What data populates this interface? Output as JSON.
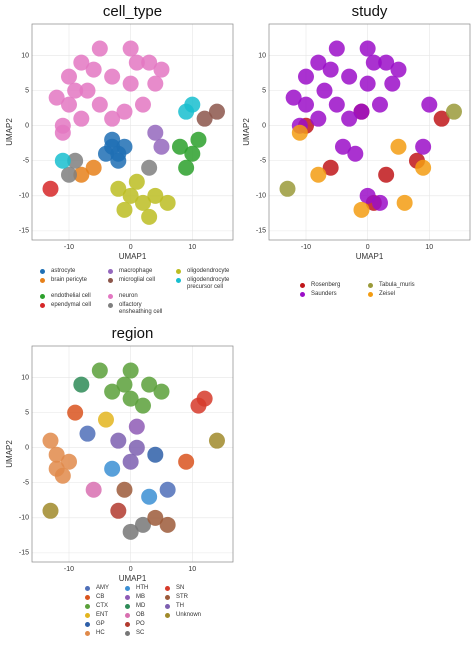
{
  "chart_data": [
    {
      "type": "scatter",
      "title": "cell_type",
      "x_label": "UMAP1",
      "y_label": "UMAP2",
      "xlim": [
        -16,
        16.6
      ],
      "ylim": [
        -16.3,
        14.5
      ],
      "xticks": [
        -10,
        0,
        10
      ],
      "yticks": [
        -15,
        -10,
        -5,
        0,
        5,
        10
      ],
      "grid": true,
      "series": [
        {
          "name": "astrocyte",
          "color": "#1f6fb4",
          "x": [
            -3,
            -2,
            -4,
            -1,
            -3,
            -2
          ],
          "y": [
            -3,
            -5,
            -4,
            -3,
            -2,
            -4
          ]
        },
        {
          "name": "brain pericyte",
          "color": "#e6801a",
          "x": [
            -6,
            -8
          ],
          "y": [
            -6,
            -7
          ]
        },
        {
          "name": "endothelial cell",
          "color": "#2ca02c",
          "x": [
            8,
            10,
            9,
            11
          ],
          "y": [
            -3,
            -4,
            -6,
            -2
          ]
        },
        {
          "name": "ependymal cell",
          "color": "#d62728",
          "x": [
            -13
          ],
          "y": [
            -9
          ]
        },
        {
          "name": "macrophage",
          "color": "#9467bd",
          "x": [
            5,
            4
          ],
          "y": [
            -3,
            -1
          ]
        },
        {
          "name": "microglial cell",
          "color": "#8c564b",
          "x": [
            12,
            14
          ],
          "y": [
            1,
            2
          ]
        },
        {
          "name": "neuron",
          "color": "#e377c2",
          "x": [
            -10,
            -8,
            -5,
            0,
            3,
            5,
            -10,
            -7,
            -3,
            0,
            2,
            -11,
            -8,
            -5,
            -3,
            -11,
            1,
            -6,
            4,
            -1,
            -12,
            -9
          ],
          "y": [
            7,
            9,
            11,
            11,
            9,
            8,
            3,
            5,
            7,
            6,
            3,
            0,
            1,
            3,
            1,
            -1,
            9,
            8,
            6,
            2,
            4,
            5
          ]
        },
        {
          "name": "olfactory ensheathing cell",
          "color": "#7f7f7f",
          "x": [
            -9,
            -10,
            3
          ],
          "y": [
            -5,
            -7,
            -6
          ]
        },
        {
          "name": "oligodendrocyte",
          "color": "#bcbd22",
          "x": [
            0,
            2,
            4,
            -2,
            6,
            1,
            -1,
            3
          ],
          "y": [
            -10,
            -11,
            -10,
            -9,
            -11,
            -8,
            -12,
            -13
          ]
        },
        {
          "name": "oligodendrocyte precursor cell",
          "color": "#17becf",
          "x": [
            9,
            10,
            -11
          ],
          "y": [
            2,
            3,
            -5
          ]
        }
      ]
    },
    {
      "type": "scatter",
      "title": "study",
      "x_label": "UMAP1",
      "y_label": "UMAP2",
      "xlim": [
        -16,
        16.6
      ],
      "ylim": [
        -16.3,
        14.5
      ],
      "xticks": [
        -10,
        0,
        10
      ],
      "yticks": [
        -15,
        -10,
        -5,
        0,
        5,
        10
      ],
      "grid": true,
      "series": [
        {
          "name": "Rosenberg",
          "color": "#c0161a",
          "x": [
            -6,
            3,
            -1,
            8,
            12,
            -10,
            1
          ],
          "y": [
            -6,
            -7,
            2,
            -5,
            1,
            0,
            -11
          ]
        },
        {
          "name": "Saunders",
          "color": "#9b0ec8",
          "x": [
            -10,
            -8,
            -5,
            0,
            3,
            5,
            -10,
            -7,
            -3,
            0,
            2,
            -11,
            -8,
            -5,
            -3,
            1,
            -6,
            4,
            -1,
            -2,
            -4,
            0,
            2,
            -12,
            9,
            10
          ],
          "y": [
            7,
            9,
            11,
            11,
            9,
            8,
            3,
            5,
            7,
            6,
            3,
            0,
            1,
            3,
            1,
            9,
            8,
            6,
            2,
            -4,
            -3,
            -10,
            -11,
            4,
            -3,
            3
          ]
        },
        {
          "name": "Tabula_muris",
          "color": "#9a9a3a",
          "x": [
            -13,
            14
          ],
          "y": [
            -9,
            2
          ]
        },
        {
          "name": "Zeisel",
          "color": "#f39c12",
          "x": [
            -11,
            5,
            -8,
            6,
            -1,
            9
          ],
          "y": [
            -1,
            -3,
            -7,
            -11,
            -12,
            -6
          ]
        }
      ]
    },
    {
      "type": "scatter",
      "title": "region",
      "x_label": "UMAP1",
      "y_label": "UMAP2",
      "xlim": [
        -16,
        16.6
      ],
      "ylim": [
        -16.3,
        14.5
      ],
      "xticks": [
        -10,
        0,
        10
      ],
      "yticks": [
        -15,
        -10,
        -5,
        0,
        5,
        10
      ],
      "grid": true,
      "series": [
        {
          "name": "AMY",
          "color": "#4f6fb8",
          "x": [
            -7,
            6
          ],
          "y": [
            2,
            -6
          ]
        },
        {
          "name": "CB",
          "color": "#d9541e",
          "x": [
            -9,
            9
          ],
          "y": [
            5,
            -2
          ]
        },
        {
          "name": "CTX",
          "color": "#5aa03a",
          "x": [
            -5,
            0,
            3,
            -3,
            0,
            2,
            -1,
            5
          ],
          "y": [
            11,
            11,
            9,
            8,
            7,
            6,
            9,
            8
          ]
        },
        {
          "name": "ENT",
          "color": "#e3b51e",
          "x": [
            -4
          ],
          "y": [
            4
          ]
        },
        {
          "name": "GP",
          "color": "#2e5fa8",
          "x": [
            4
          ],
          "y": [
            -1
          ]
        },
        {
          "name": "HC",
          "color": "#e08a4a",
          "x": [
            -12,
            -11,
            -13,
            -10,
            -12
          ],
          "y": [
            -1,
            -4,
            1,
            -2,
            -3
          ]
        },
        {
          "name": "HTH",
          "color": "#3b8fd4",
          "x": [
            -3,
            3
          ],
          "y": [
            -3,
            -7
          ]
        },
        {
          "name": "MB",
          "color": "#8e5ab5",
          "x": [
            1
          ],
          "y": [
            3
          ]
        },
        {
          "name": "MD",
          "color": "#2e8b57",
          "x": [
            -8
          ],
          "y": [
            9
          ]
        },
        {
          "name": "OB",
          "color": "#d86fb0",
          "x": [
            -6
          ],
          "y": [
            -6
          ]
        },
        {
          "name": "PO",
          "color": "#b23a2e",
          "x": [
            -2
          ],
          "y": [
            -9
          ]
        },
        {
          "name": "SC",
          "color": "#777777",
          "x": [
            2,
            0
          ],
          "y": [
            -11,
            -12
          ]
        },
        {
          "name": "SN",
          "color": "#d63a2a",
          "x": [
            11,
            12
          ],
          "y": [
            6,
            7
          ]
        },
        {
          "name": "STR",
          "color": "#9c5a3a",
          "x": [
            4,
            6,
            -1
          ],
          "y": [
            -10,
            -11,
            -6
          ]
        },
        {
          "name": "TH",
          "color": "#7d5fb0",
          "x": [
            0,
            1,
            -2
          ],
          "y": [
            -2,
            0,
            1
          ]
        },
        {
          "name": "Unknown",
          "color": "#a08a2a",
          "x": [
            -13,
            14
          ],
          "y": [
            -9,
            1
          ]
        }
      ]
    }
  ]
}
